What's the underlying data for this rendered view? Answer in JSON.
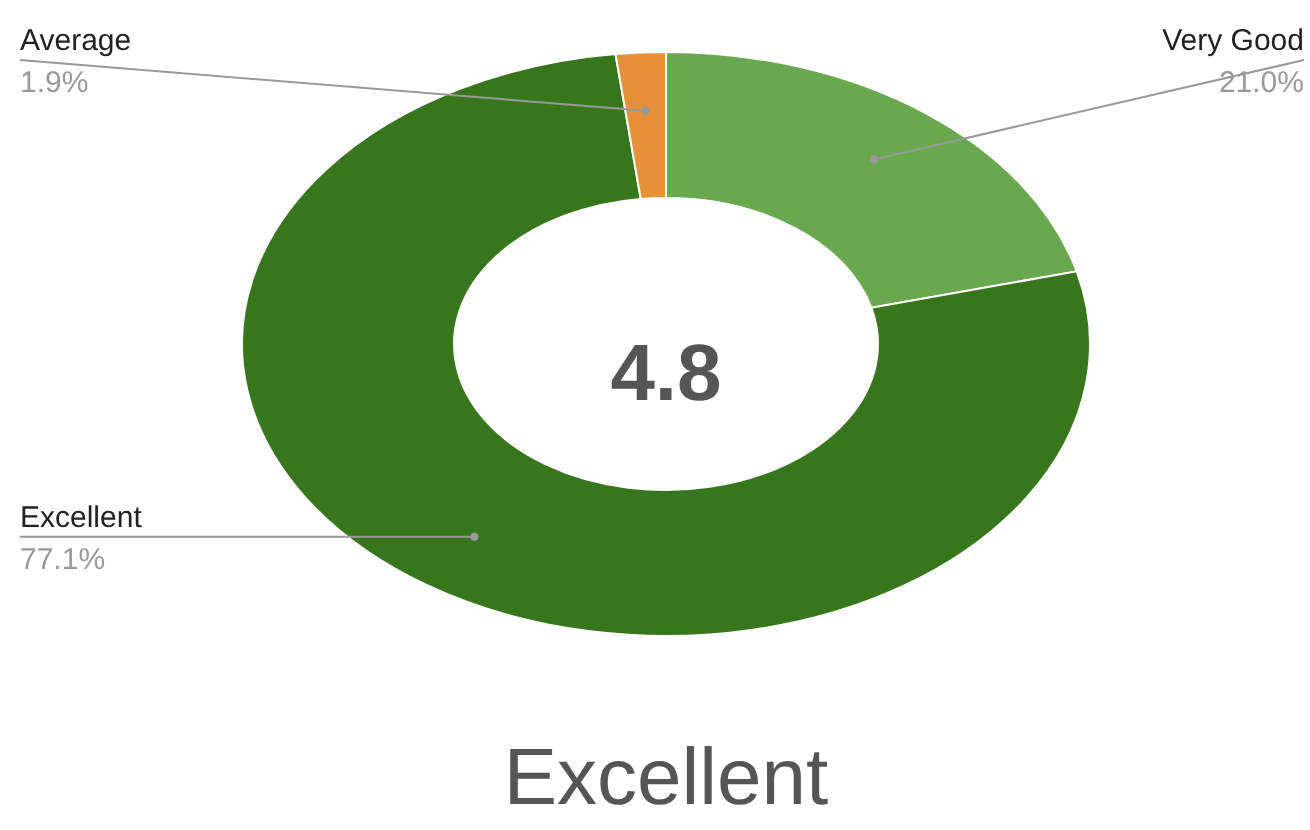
{
  "chart_data": {
    "type": "donut",
    "categories": [
      "Very Good",
      "Excellent",
      "Average"
    ],
    "values": [
      21.0,
      77.1,
      1.9
    ],
    "value_labels": [
      "21.0%",
      "77.1%",
      "1.9%"
    ],
    "colors": [
      "#6aa84f",
      "#38761d",
      "#e69138"
    ],
    "annotations": [
      "4.8",
      "Excellent"
    ]
  }
}
